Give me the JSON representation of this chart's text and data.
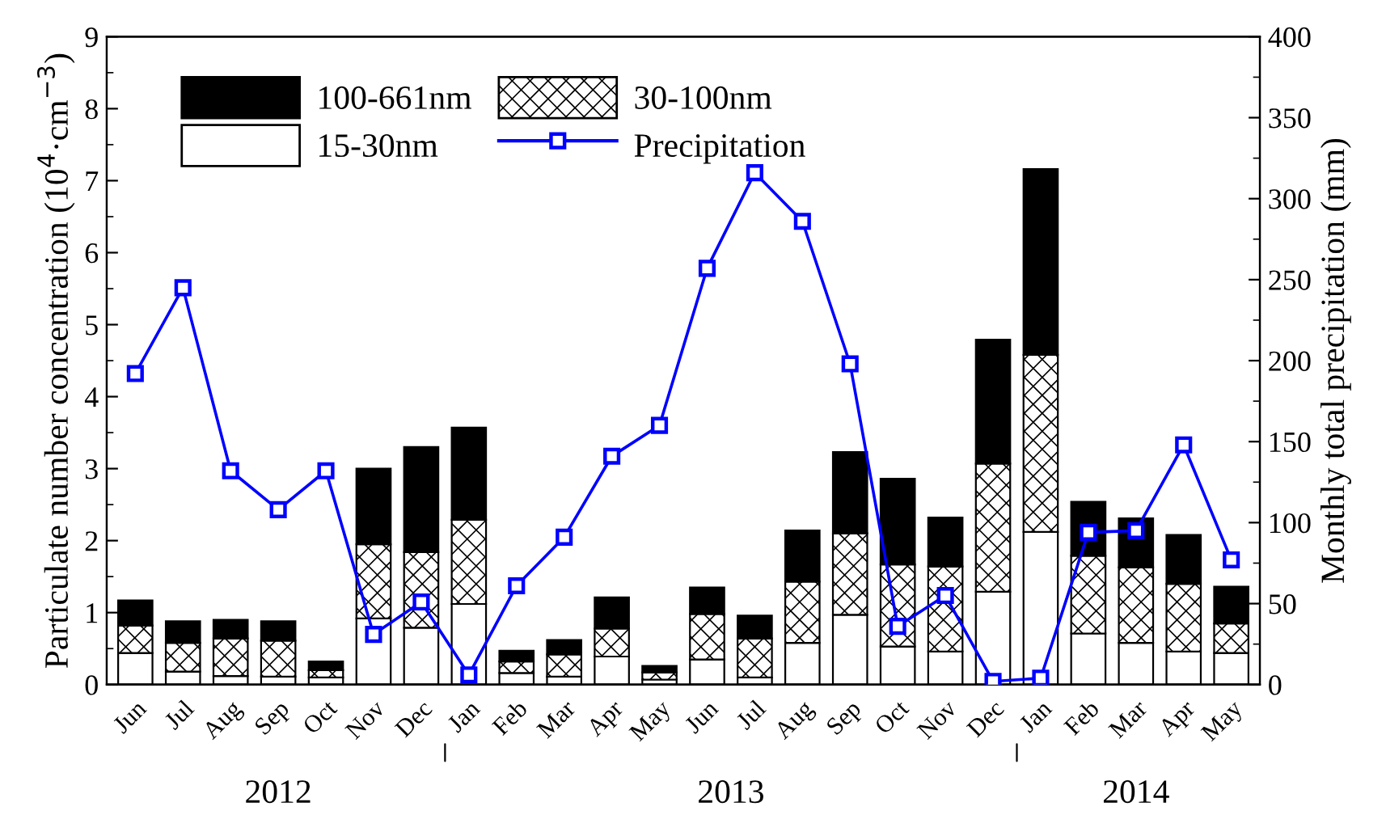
{
  "chart_data": {
    "type": "bar",
    "stacked": true,
    "xlabel": null,
    "ylabel": "Particulate number concentration (10$^{4}$·cm$^{−3}$)",
    "y2label": "Monthly total precipitation (mm)",
    "categories": [
      "Jun",
      "Jul",
      "Aug",
      "Sep",
      "Oct",
      "Nov",
      "Dec",
      "Jan",
      "Feb",
      "Mar",
      "Apr",
      "May",
      "Jun",
      "Jul",
      "Aug",
      "Sep",
      "Oct",
      "Nov",
      "Dec",
      "Jan",
      "Feb",
      "Mar",
      "Apr",
      "May"
    ],
    "series": [
      {
        "name": "15-30nm",
        "color": "#ffffff",
        "values": [
          0.44,
          0.18,
          0.12,
          0.11,
          0.1,
          0.92,
          0.79,
          1.12,
          0.16,
          0.11,
          0.39,
          0.07,
          0.35,
          0.1,
          0.58,
          0.97,
          0.53,
          0.46,
          1.29,
          2.12,
          0.71,
          0.58,
          0.46,
          0.44
        ]
      },
      {
        "name": "30-100nm",
        "color": "#000000",
        "values": [
          0.38,
          0.4,
          0.52,
          0.5,
          0.1,
          1.03,
          1.05,
          1.17,
          0.16,
          0.31,
          0.39,
          0.1,
          0.63,
          0.54,
          0.85,
          1.13,
          1.14,
          1.18,
          1.78,
          2.46,
          1.08,
          1.05,
          0.94,
          0.41
        ]
      },
      {
        "name": "100-661nm",
        "color": "#000000",
        "values": [
          0.35,
          0.3,
          0.26,
          0.27,
          0.12,
          1.05,
          1.46,
          1.28,
          0.15,
          0.2,
          0.43,
          0.09,
          0.37,
          0.32,
          0.71,
          1.13,
          1.19,
          0.68,
          1.72,
          2.58,
          0.75,
          0.68,
          0.68,
          0.51
        ]
      },
      {
        "name": "Precipitation",
        "type": "line",
        "axis": "y2",
        "color": "#0000ff",
        "marker": "square",
        "values": [
          192,
          245,
          132,
          108,
          132,
          31,
          51,
          6,
          61,
          91,
          141,
          160,
          257,
          316,
          286,
          198,
          36,
          55,
          2,
          4,
          94,
          95,
          148,
          77
        ]
      }
    ],
    "ylim": [
      0,
      9
    ],
    "yticks": [
      0,
      1,
      2,
      3,
      4,
      5,
      6,
      7,
      8,
      9
    ],
    "y2lim": [
      0,
      400
    ],
    "y2ticks": [
      0,
      50,
      100,
      150,
      200,
      250,
      300,
      350,
      400
    ],
    "legend": "top left",
    "annotations": [
      "2012",
      "2013",
      "2014"
    ]
  }
}
